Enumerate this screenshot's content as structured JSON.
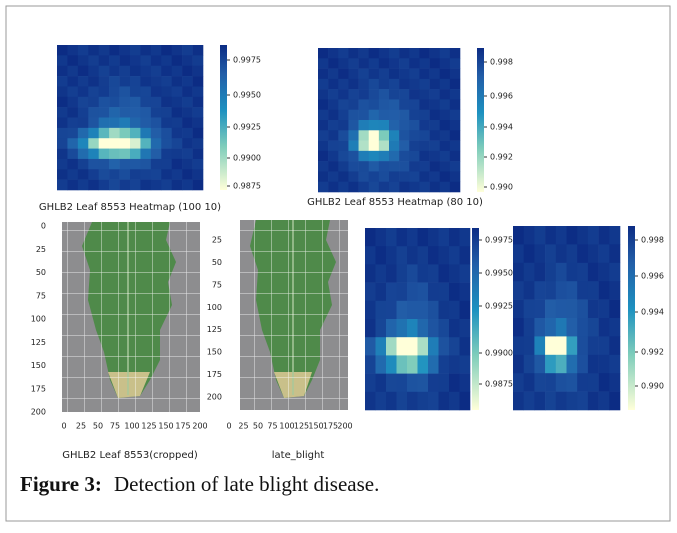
{
  "panels": [
    {
      "title": "GHLB2 Leaf 8553  Heatmap (100 10)",
      "colorbar_ticks": [
        "0.9975",
        "0.9950",
        "0.9925",
        "0.9900",
        "0.9875"
      ]
    },
    {
      "title": "GHLB2 Leaf 8553  Heatmap (80 10)",
      "colorbar_ticks": [
        "0.998",
        "0.996",
        "0.994",
        "0.992",
        "0.990"
      ]
    },
    {
      "colorbar_ticks": [
        "0.9975",
        "0.9950",
        "0.9925",
        "0.9900",
        "0.9875"
      ]
    },
    {
      "colorbar_ticks": [
        "0.998",
        "0.996",
        "0.994",
        "0.992",
        "0.990"
      ]
    }
  ],
  "images": [
    {
      "caption": "GHLB2 Leaf 8553(cropped)",
      "yticks": [
        0,
        25,
        50,
        75,
        100,
        125,
        150,
        175,
        200
      ],
      "xticks": [
        0,
        25,
        50,
        75,
        100,
        125,
        150,
        175,
        200
      ]
    },
    {
      "caption": "late_blight",
      "yticks": [
        25,
        50,
        75,
        100,
        125,
        150,
        175,
        200
      ],
      "xticks": [
        0,
        25,
        50,
        75,
        100,
        125,
        150,
        175,
        200
      ]
    }
  ],
  "caption": {
    "label": "Figure 3:",
    "text": "Detection of late blight disease."
  }
}
